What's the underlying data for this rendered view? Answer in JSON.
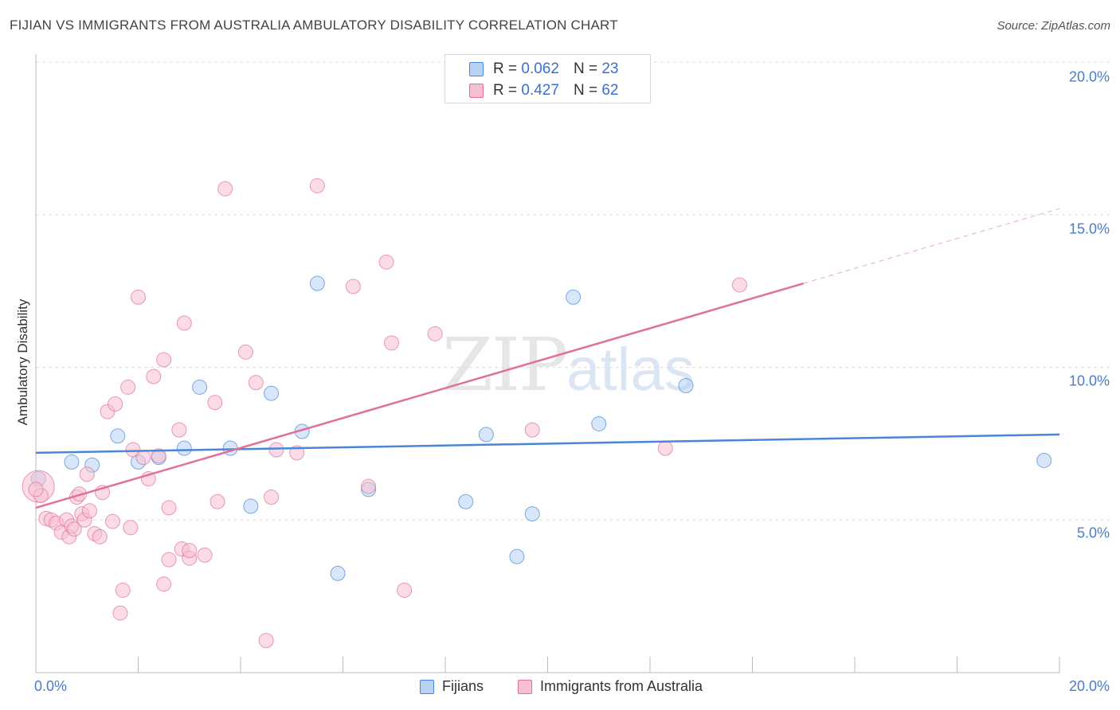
{
  "chart_data": {
    "type": "scatter",
    "title": "FIJIAN VS IMMIGRANTS FROM AUSTRALIA AMBULATORY DISABILITY CORRELATION CHART",
    "source": "Source: ZipAtlas.com",
    "ylabel": "Ambulatory Disability",
    "xlim": [
      0,
      20
    ],
    "ylim": [
      0,
      20
    ],
    "y_ticks": [
      {
        "value": 5,
        "label": "5.0%"
      },
      {
        "value": 10,
        "label": "10.0%"
      },
      {
        "value": 15,
        "label": "15.0%"
      },
      {
        "value": 20,
        "label": "20.0%"
      }
    ],
    "x_tick_labels": {
      "min": "0.0%",
      "max": "20.0%"
    },
    "watermark": {
      "zip": "ZIP",
      "atlas": "atlas"
    },
    "legend": {
      "r_label": "R =",
      "n_label": "N =",
      "rows": [
        {
          "series": "Fijians",
          "r": "0.062",
          "n": "23"
        },
        {
          "series": "Immigrants from Australia",
          "r": "0.427",
          "n": "62"
        }
      ]
    },
    "series": [
      {
        "name": "Fijians",
        "color": "#4a86d8",
        "fill": "#b8d2f4",
        "trend": {
          "x0": 0,
          "y0": 7.2,
          "x1": 20,
          "y1": 7.8,
          "solid_until": 20
        },
        "points": [
          [
            0.05,
            6.35
          ],
          [
            0.7,
            6.9
          ],
          [
            1.1,
            6.8
          ],
          [
            1.6,
            7.75
          ],
          [
            2.0,
            6.9
          ],
          [
            2.4,
            7.05
          ],
          [
            2.9,
            7.35
          ],
          [
            3.2,
            9.35
          ],
          [
            3.8,
            7.35
          ],
          [
            4.2,
            5.45
          ],
          [
            4.6,
            9.15
          ],
          [
            5.2,
            7.9
          ],
          [
            5.5,
            12.75
          ],
          [
            5.9,
            3.25
          ],
          [
            6.5,
            6.0
          ],
          [
            8.4,
            5.6
          ],
          [
            8.8,
            7.8
          ],
          [
            9.4,
            3.8
          ],
          [
            9.7,
            5.2
          ],
          [
            10.5,
            12.3
          ],
          [
            11.0,
            8.15
          ],
          [
            12.7,
            9.4
          ],
          [
            19.7,
            6.95
          ]
        ]
      },
      {
        "name": "Immigrants from Australia",
        "color": "#e0709a",
        "fill": "#f7bfd2",
        "trend": {
          "x0": 0,
          "y0": 5.4,
          "x1": 20,
          "y1": 15.2,
          "solid_until": 15.0
        },
        "points": [
          [
            0.05,
            6.1
          ],
          [
            0.1,
            5.8
          ],
          [
            0.2,
            5.05
          ],
          [
            0.3,
            5.0
          ],
          [
            0.4,
            4.9
          ],
          [
            0.5,
            4.6
          ],
          [
            0.6,
            5.0
          ],
          [
            0.65,
            4.45
          ],
          [
            0.7,
            4.8
          ],
          [
            0.75,
            4.7
          ],
          [
            0.8,
            5.75
          ],
          [
            0.85,
            5.85
          ],
          [
            0.9,
            5.2
          ],
          [
            0.95,
            5.0
          ],
          [
            1.0,
            6.5
          ],
          [
            1.05,
            5.3
          ],
          [
            1.15,
            4.55
          ],
          [
            1.25,
            4.45
          ],
          [
            1.3,
            5.9
          ],
          [
            1.4,
            8.55
          ],
          [
            1.55,
            8.8
          ],
          [
            1.5,
            4.95
          ],
          [
            1.7,
            2.7
          ],
          [
            1.65,
            1.95
          ],
          [
            1.8,
            9.35
          ],
          [
            1.85,
            4.75
          ],
          [
            1.9,
            7.3
          ],
          [
            2.0,
            12.3
          ],
          [
            2.1,
            7.05
          ],
          [
            2.2,
            6.35
          ],
          [
            2.3,
            9.7
          ],
          [
            2.4,
            7.1
          ],
          [
            2.5,
            2.9
          ],
          [
            2.5,
            10.25
          ],
          [
            2.6,
            5.4
          ],
          [
            2.6,
            3.7
          ],
          [
            2.8,
            7.95
          ],
          [
            2.85,
            4.05
          ],
          [
            2.9,
            11.45
          ],
          [
            3.0,
            3.75
          ],
          [
            3.0,
            4.0
          ],
          [
            3.3,
            3.85
          ],
          [
            3.5,
            8.85
          ],
          [
            3.55,
            5.6
          ],
          [
            3.7,
            15.85
          ],
          [
            4.1,
            10.5
          ],
          [
            4.3,
            9.5
          ],
          [
            4.5,
            1.05
          ],
          [
            4.6,
            5.75
          ],
          [
            4.7,
            7.3
          ],
          [
            5.1,
            7.2
          ],
          [
            5.5,
            15.95
          ],
          [
            6.2,
            12.65
          ],
          [
            6.5,
            6.1
          ],
          [
            6.85,
            13.45
          ],
          [
            6.95,
            10.8
          ],
          [
            7.2,
            2.7
          ],
          [
            7.8,
            11.1
          ],
          [
            9.7,
            7.95
          ],
          [
            12.3,
            7.35
          ],
          [
            13.75,
            12.7
          ],
          [
            0.0,
            6.0
          ]
        ]
      }
    ]
  }
}
